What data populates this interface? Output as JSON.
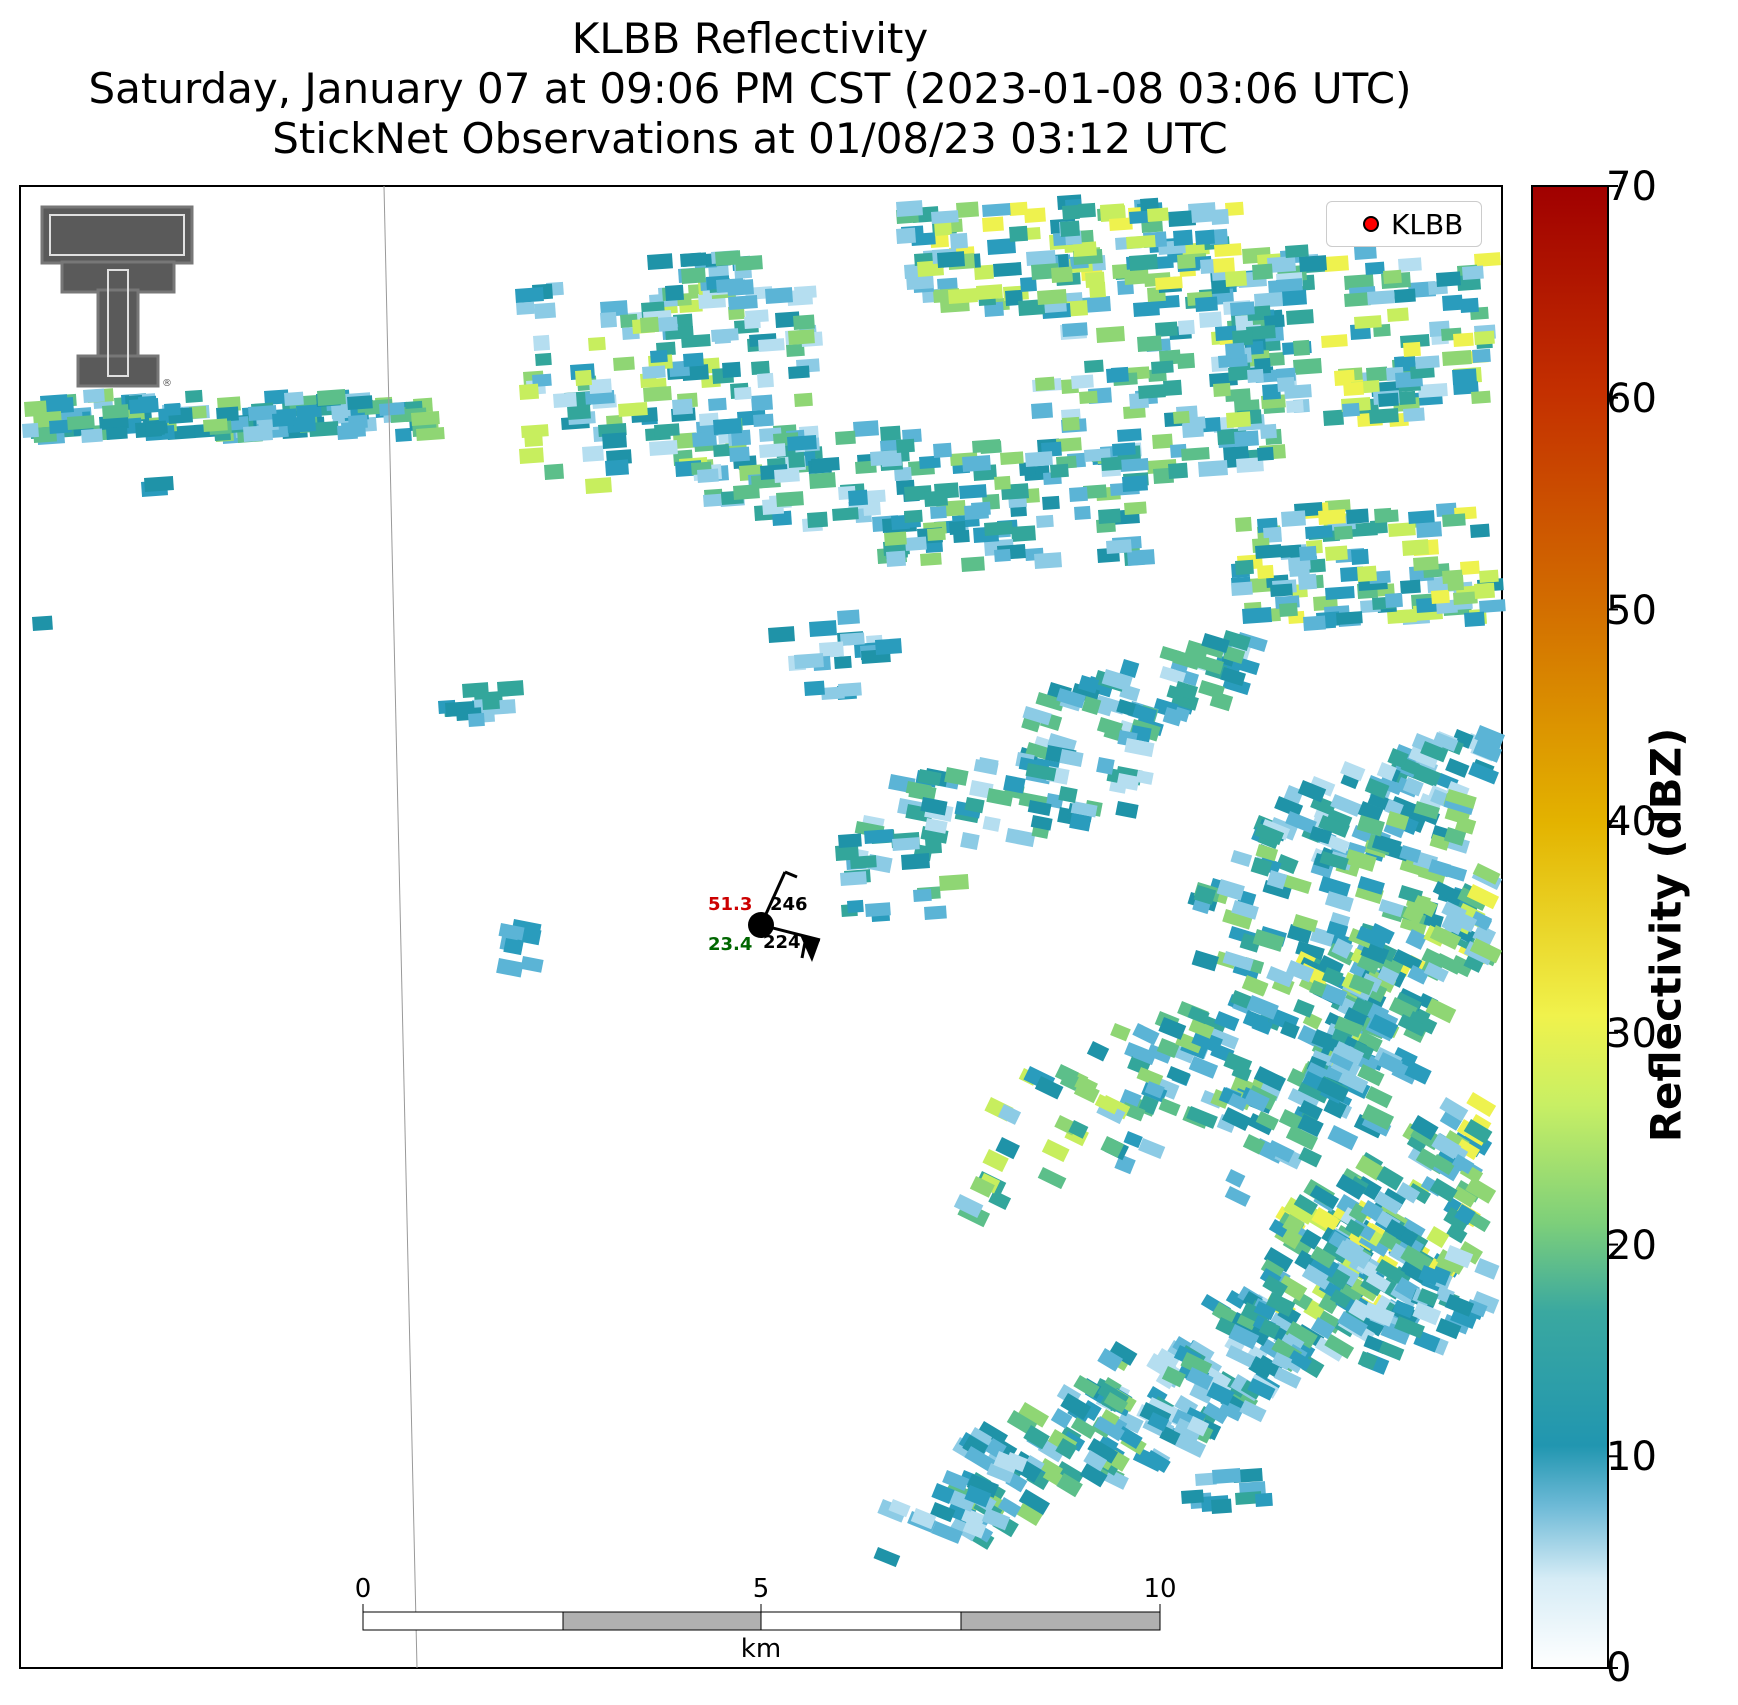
{
  "title": {
    "line1": "KLBB Reflectivity",
    "line2": "Saturday, January 07 at 09:06 PM CST (2023-01-08 03:06 UTC)",
    "line3": "StickNet Observations at 01/08/23 03:12 UTC"
  },
  "legend": {
    "label": "KLBB",
    "marker_color": "#ff0000"
  },
  "colorbar": {
    "label": "Reflectivity (dBZ)",
    "ticks": [
      "0",
      "10",
      "20",
      "30",
      "40",
      "50",
      "60",
      "70"
    ],
    "colors": [
      "#ffffff",
      "#9fd3ea",
      "#2196b0",
      "#5fc08a",
      "#f1f04a",
      "#e0a400",
      "#cf4d00",
      "#a00000"
    ]
  },
  "scale_bar": {
    "ticks": [
      "0",
      "5",
      "10"
    ],
    "unit": "km"
  },
  "station": {
    "temperature": "51.3",
    "pressure": "246",
    "dewpoint": "23.4",
    "pressure_alt": "224",
    "temperature_color": "#cc0000",
    "dewpoint_color": "#006600"
  },
  "logo": {
    "name": "texas-tech-double-t-logo"
  }
}
